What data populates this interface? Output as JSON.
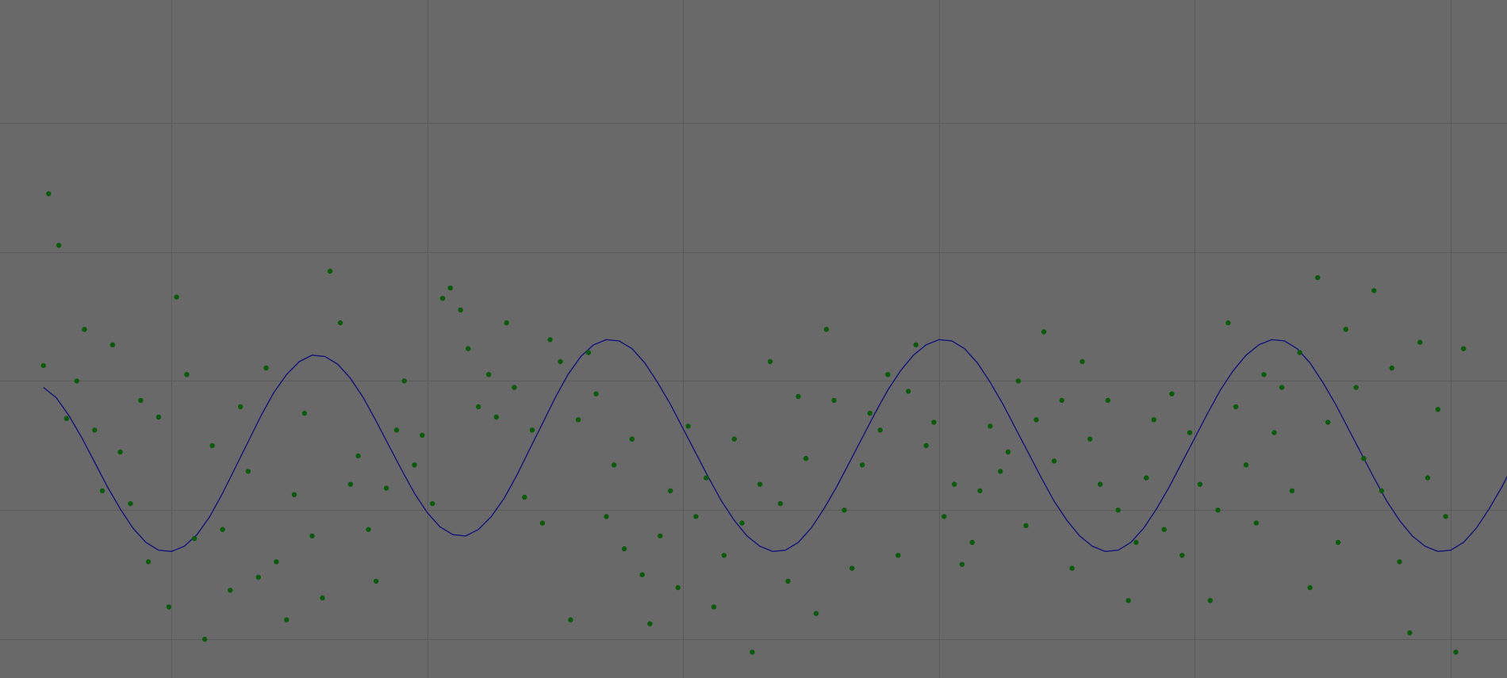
{
  "colors": {
    "background": "#696969",
    "grid": "#5a5a5a",
    "curve": "#14147a",
    "points": "#0c5a0c"
  },
  "chart_data": {
    "type": "scatter",
    "title": "",
    "xlabel": "",
    "ylabel": "",
    "xlim": [
      -0.17,
      5.72
    ],
    "ylim": [
      -1.8,
      3.45
    ],
    "grid": true,
    "x_gridlines": [
      0.5,
      1.5,
      2.5,
      3.5,
      4.5,
      5.5
    ],
    "y_gridlines": [
      -1.5,
      -0.5,
      0.5,
      1.5,
      2.5
    ],
    "legend": "none",
    "series": [
      {
        "kind": "line",
        "sample_step": 0.05,
        "x_start": 0.0,
        "values": [
          0.45,
          0.37,
          0.23,
          0.06,
          -0.13,
          -0.32,
          -0.49,
          -0.64,
          -0.75,
          -0.81,
          -0.82,
          -0.78,
          -0.69,
          -0.55,
          -0.37,
          -0.17,
          0.03,
          0.23,
          0.41,
          0.55,
          0.65,
          0.7,
          0.69,
          0.63,
          0.52,
          0.37,
          0.19,
          0.0,
          -0.19,
          -0.37,
          -0.52,
          -0.63,
          -0.69,
          -0.7,
          -0.65,
          -0.55,
          -0.41,
          -0.23,
          -0.03,
          0.17,
          0.37,
          0.55,
          0.69,
          0.78,
          0.82,
          0.81,
          0.75,
          0.64,
          0.49,
          0.32,
          0.13,
          -0.06,
          -0.25,
          -0.43,
          -0.58,
          -0.7,
          -0.78,
          -0.82,
          -0.81,
          -0.75,
          -0.64,
          -0.49,
          -0.32,
          -0.13,
          0.06,
          0.25,
          0.43,
          0.58,
          0.7,
          0.78,
          0.82,
          0.81,
          0.75,
          0.64,
          0.49,
          0.32,
          0.13,
          -0.06,
          -0.25,
          -0.43,
          -0.58,
          -0.7,
          -0.78,
          -0.82,
          -0.81,
          -0.75,
          -0.64,
          -0.49,
          -0.32,
          -0.13,
          0.06,
          0.25,
          0.43,
          0.58,
          0.7,
          0.78,
          0.82,
          0.81,
          0.75,
          0.64,
          0.49,
          0.32,
          0.13,
          -0.06,
          -0.25,
          -0.43,
          -0.58,
          -0.7,
          -0.78,
          -0.82,
          -0.81,
          -0.75,
          -0.64,
          -0.49,
          -0.32,
          -0.13,
          0.06
        ]
      },
      {
        "kind": "scatter",
        "points": [
          [
            0.0,
            0.62
          ],
          [
            0.02,
            1.95
          ],
          [
            0.06,
            1.55
          ],
          [
            0.09,
            0.21
          ],
          [
            0.13,
            0.5
          ],
          [
            0.16,
            0.9
          ],
          [
            0.2,
            0.12
          ],
          [
            0.23,
            -0.35
          ],
          [
            0.27,
            0.78
          ],
          [
            0.3,
            -0.05
          ],
          [
            0.34,
            -0.45
          ],
          [
            0.38,
            0.35
          ],
          [
            0.41,
            -0.9
          ],
          [
            0.45,
            0.22
          ],
          [
            0.49,
            -1.25
          ],
          [
            0.52,
            1.15
          ],
          [
            0.56,
            0.55
          ],
          [
            0.59,
            -0.72
          ],
          [
            0.63,
            -1.5
          ],
          [
            0.66,
            0.0
          ],
          [
            0.7,
            -0.65
          ],
          [
            0.73,
            -1.12
          ],
          [
            0.77,
            0.3
          ],
          [
            0.8,
            -0.2
          ],
          [
            0.84,
            -1.02
          ],
          [
            0.87,
            0.6
          ],
          [
            0.91,
            -0.9
          ],
          [
            0.95,
            -1.35
          ],
          [
            0.98,
            -0.38
          ],
          [
            1.02,
            0.25
          ],
          [
            1.05,
            -0.7
          ],
          [
            1.09,
            -1.18
          ],
          [
            1.12,
            1.35
          ],
          [
            1.16,
            0.95
          ],
          [
            1.2,
            -0.3
          ],
          [
            1.23,
            -0.08
          ],
          [
            1.27,
            -0.65
          ],
          [
            1.3,
            -1.05
          ],
          [
            1.34,
            -0.33
          ],
          [
            1.38,
            0.12
          ],
          [
            1.41,
            0.5
          ],
          [
            1.45,
            -0.15
          ],
          [
            1.48,
            0.08
          ],
          [
            1.52,
            -0.45
          ],
          [
            1.56,
            1.14
          ],
          [
            1.59,
            1.22
          ],
          [
            1.63,
            1.05
          ],
          [
            1.66,
            0.75
          ],
          [
            1.7,
            0.3
          ],
          [
            1.74,
            0.55
          ],
          [
            1.77,
            0.22
          ],
          [
            1.81,
            0.95
          ],
          [
            1.84,
            0.45
          ],
          [
            1.88,
            -0.4
          ],
          [
            1.91,
            0.12
          ],
          [
            1.95,
            -0.6
          ],
          [
            1.98,
            0.82
          ],
          [
            2.02,
            0.65
          ],
          [
            2.06,
            -1.35
          ],
          [
            2.09,
            0.2
          ],
          [
            2.13,
            0.72
          ],
          [
            2.16,
            0.4
          ],
          [
            2.2,
            -0.55
          ],
          [
            2.23,
            -0.15
          ],
          [
            2.27,
            -0.8
          ],
          [
            2.3,
            0.05
          ],
          [
            2.34,
            -1.0
          ],
          [
            2.37,
            -1.38
          ],
          [
            2.41,
            -0.7
          ],
          [
            2.45,
            -0.35
          ],
          [
            2.48,
            -1.1
          ],
          [
            2.52,
            0.15
          ],
          [
            2.55,
            -0.55
          ],
          [
            2.59,
            -0.25
          ],
          [
            2.62,
            -1.25
          ],
          [
            2.66,
            -0.85
          ],
          [
            2.7,
            0.05
          ],
          [
            2.73,
            -0.6
          ],
          [
            2.77,
            -1.6
          ],
          [
            2.8,
            -0.3
          ],
          [
            2.84,
            0.65
          ],
          [
            2.88,
            -0.45
          ],
          [
            2.91,
            -1.05
          ],
          [
            2.95,
            0.38
          ],
          [
            2.98,
            -0.1
          ],
          [
            3.02,
            -1.3
          ],
          [
            3.06,
            0.9
          ],
          [
            3.09,
            0.35
          ],
          [
            3.13,
            -0.5
          ],
          [
            3.16,
            -0.95
          ],
          [
            3.2,
            -0.15
          ],
          [
            3.23,
            0.25
          ],
          [
            3.27,
            0.12
          ],
          [
            3.3,
            0.55
          ],
          [
            3.34,
            -0.85
          ],
          [
            3.38,
            0.42
          ],
          [
            3.41,
            0.78
          ],
          [
            3.45,
            0.0
          ],
          [
            3.48,
            0.18
          ],
          [
            3.52,
            -0.55
          ],
          [
            3.56,
            -0.3
          ],
          [
            3.59,
            -0.92
          ],
          [
            3.63,
            -0.75
          ],
          [
            3.66,
            -0.35
          ],
          [
            3.7,
            0.15
          ],
          [
            3.74,
            -0.2
          ],
          [
            3.77,
            -0.05
          ],
          [
            3.81,
            0.5
          ],
          [
            3.84,
            -0.62
          ],
          [
            3.88,
            0.2
          ],
          [
            3.91,
            0.88
          ],
          [
            3.95,
            -0.12
          ],
          [
            3.98,
            0.35
          ],
          [
            4.02,
            -0.95
          ],
          [
            4.06,
            0.65
          ],
          [
            4.09,
            0.05
          ],
          [
            4.13,
            -0.3
          ],
          [
            4.16,
            0.35
          ],
          [
            4.2,
            -0.5
          ],
          [
            4.24,
            -1.2
          ],
          [
            4.27,
            -0.75
          ],
          [
            4.31,
            -0.25
          ],
          [
            4.34,
            0.2
          ],
          [
            4.38,
            -0.65
          ],
          [
            4.41,
            0.4
          ],
          [
            4.45,
            -0.85
          ],
          [
            4.48,
            0.1
          ],
          [
            4.52,
            -0.3
          ],
          [
            4.56,
            -1.2
          ],
          [
            4.59,
            -0.5
          ],
          [
            4.63,
            0.95
          ],
          [
            4.66,
            0.3
          ],
          [
            4.7,
            -0.15
          ],
          [
            4.74,
            -0.6
          ],
          [
            4.77,
            0.55
          ],
          [
            4.81,
            0.1
          ],
          [
            4.84,
            0.45
          ],
          [
            4.88,
            -0.35
          ],
          [
            4.91,
            0.72
          ],
          [
            4.95,
            -1.1
          ],
          [
            4.98,
            1.3
          ],
          [
            5.02,
            0.18
          ],
          [
            5.06,
            -0.75
          ],
          [
            5.09,
            0.9
          ],
          [
            5.13,
            0.45
          ],
          [
            5.16,
            -0.1
          ],
          [
            5.2,
            1.2
          ],
          [
            5.23,
            -0.35
          ],
          [
            5.27,
            0.6
          ],
          [
            5.3,
            -0.9
          ],
          [
            5.34,
            -1.45
          ],
          [
            5.38,
            0.8
          ],
          [
            5.41,
            -0.25
          ],
          [
            5.45,
            0.28
          ],
          [
            5.48,
            -0.55
          ],
          [
            5.52,
            -1.6
          ],
          [
            5.55,
            0.75
          ]
        ]
      }
    ]
  }
}
